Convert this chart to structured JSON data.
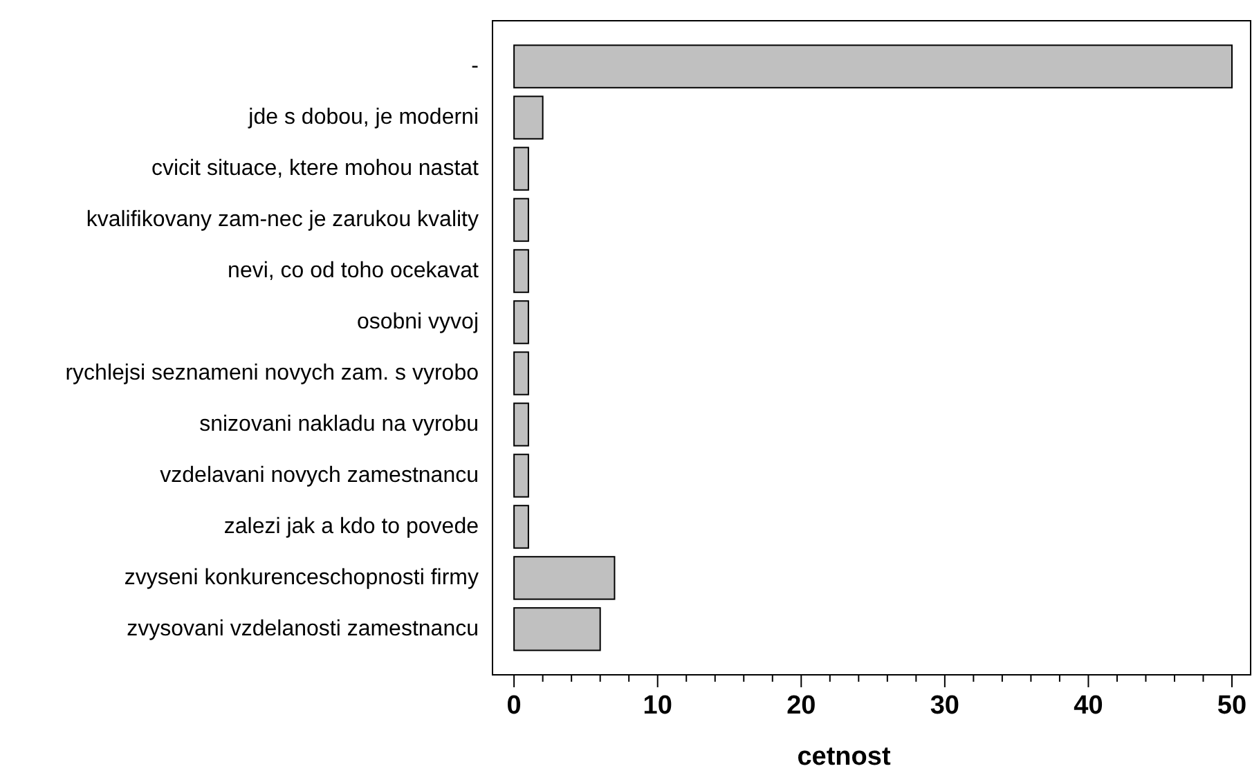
{
  "chart_data": {
    "type": "bar",
    "orientation": "horizontal",
    "xlabel": "cetnost",
    "categories": [
      "-",
      "jde s dobou, je moderni",
      "cvicit situace, ktere mohou nastat",
      "kvalifikovany zam-nec je zarukou kvality",
      "nevi, co od toho ocekavat",
      "osobni vyvoj",
      "rychlejsi seznameni novych zam. s vyrobo",
      "snizovani nakladu na vyrobu",
      "vzdelavani novych zamestnancu",
      "zalezi jak a kdo to povede",
      "zvyseni konkurenceschopnosti firmy",
      "zvysovani vzdelanosti zamestnancu"
    ],
    "values": [
      50,
      2,
      1,
      1,
      1,
      1,
      1,
      1,
      1,
      1,
      7,
      6
    ],
    "color": "#c0c0c0",
    "xlim": [
      -1.5,
      51.3
    ],
    "xticks": [
      0,
      {
        "value": 2,
        "label": null
      },
      {
        "value": 4,
        "label": null
      },
      {
        "value": 6,
        "label": null
      },
      {
        "value": 8,
        "label": null
      },
      10,
      {
        "value": 12,
        "label": null
      },
      {
        "value": 14,
        "label": null
      },
      {
        "value": 16,
        "label": null
      },
      {
        "value": 18,
        "label": null
      },
      20,
      {
        "value": 22,
        "label": null
      },
      {
        "value": 24,
        "label": null
      },
      {
        "value": 26,
        "label": null
      },
      {
        "value": 28,
        "label": null
      },
      30,
      {
        "value": 32,
        "label": null
      },
      {
        "value": 34,
        "label": null
      },
      {
        "value": 36,
        "label": null
      },
      {
        "value": 38,
        "label": null
      },
      40,
      {
        "value": 42,
        "label": null
      },
      {
        "value": 44,
        "label": null
      },
      {
        "value": 46,
        "label": null
      },
      {
        "value": 48,
        "label": null
      },
      50
    ],
    "grid": false
  }
}
